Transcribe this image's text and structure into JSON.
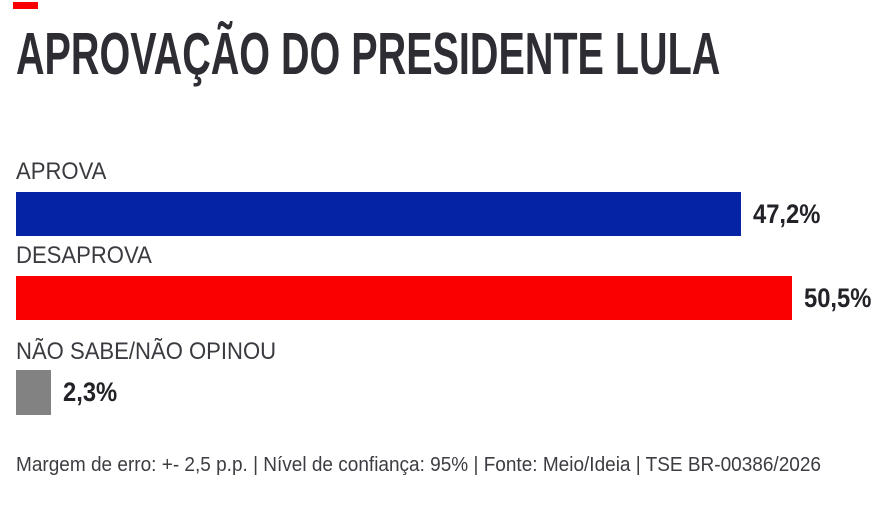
{
  "page": {
    "background": "#ffffff"
  },
  "decor": {
    "top_left_mark_color": "#fb0000"
  },
  "chart_data": {
    "type": "bar",
    "orientation": "horizontal",
    "title": "APROVAÇÃO DO PRESIDENTE LULA",
    "categories": [
      "APROVA",
      "DESAPROVA",
      "NÃO SABE/NÃO OPINOU"
    ],
    "values": [
      47.2,
      50.5,
      2.3
    ],
    "value_labels": [
      "47,2%",
      "50,5%",
      "2,3%"
    ],
    "series_colors": [
      "#0523a5",
      "#fb0000",
      "#828282"
    ],
    "xlim": [
      0,
      52
    ],
    "grid": false,
    "legend": false,
    "text_colors": {
      "title": "#2d2d33",
      "category": "#3a3a40",
      "value": "#222228",
      "footnote": "#3c3c42"
    },
    "footnote": "Margem de erro: +- 2,5 p.p. | Nível de confiança: 95% | Fonte: Meio/Ideia | TSE BR-00386/2026"
  }
}
